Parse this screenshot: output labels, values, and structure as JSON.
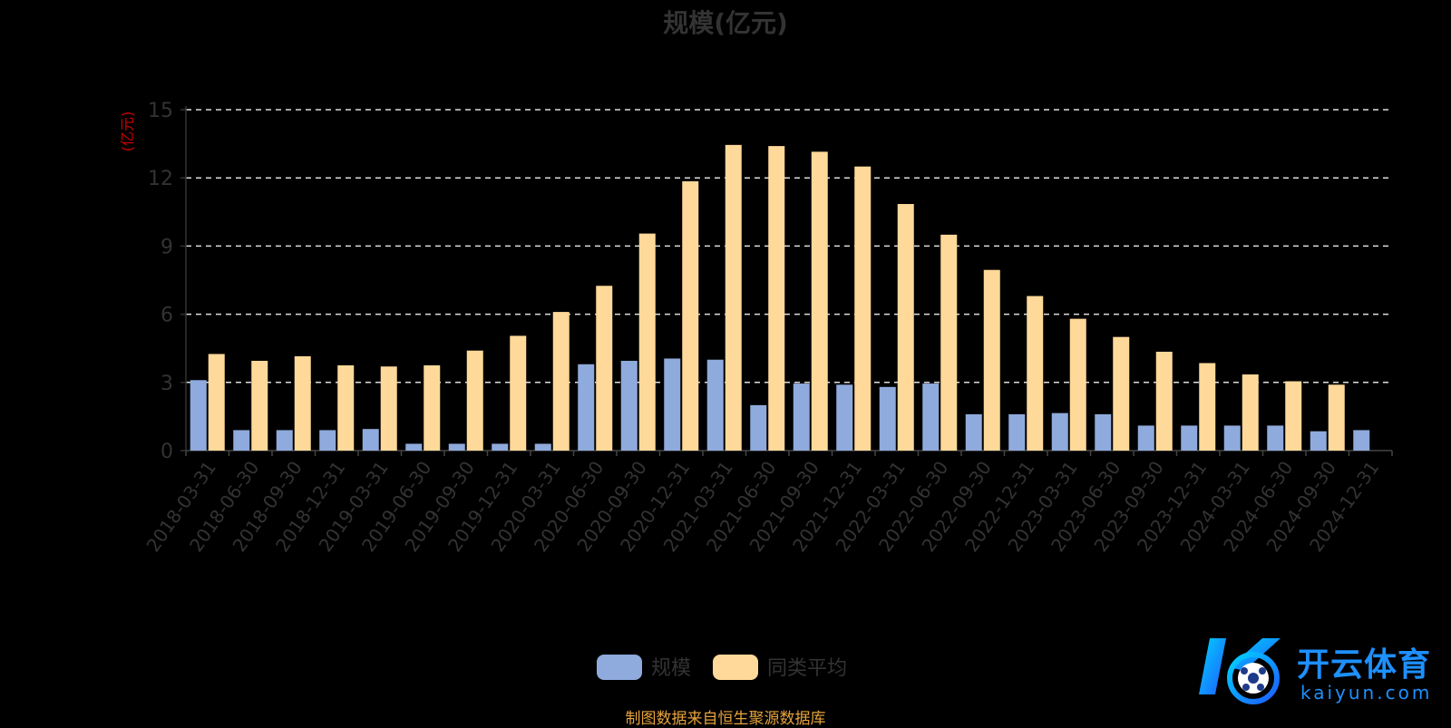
{
  "chart_data": {
    "type": "bar",
    "title": "规模(亿元)",
    "ylabel": "(亿元)",
    "xlabel": "",
    "ylim": [
      0,
      15
    ],
    "yticks": [
      0,
      3,
      6,
      9,
      12,
      15
    ],
    "grid": true,
    "legend_position": "bottom-center",
    "categories": [
      "2018-03-31",
      "2018-06-30",
      "2018-09-30",
      "2018-12-31",
      "2019-03-31",
      "2019-06-30",
      "2019-09-30",
      "2019-12-31",
      "2020-03-31",
      "2020-06-30",
      "2020-09-30",
      "2020-12-31",
      "2021-03-31",
      "2021-06-30",
      "2021-09-30",
      "2021-12-31",
      "2022-03-31",
      "2022-06-30",
      "2022-09-30",
      "2022-12-31",
      "2023-03-31",
      "2023-06-30",
      "2023-09-30",
      "2023-12-31",
      "2024-03-31",
      "2024-06-30",
      "2024-09-30",
      "2024-12-31"
    ],
    "series": [
      {
        "name": "规模",
        "color": "#8FAADC",
        "values": [
          3.1,
          0.9,
          0.9,
          0.9,
          0.95,
          0.3,
          0.3,
          0.3,
          0.3,
          3.8,
          3.95,
          4.05,
          4.0,
          2.0,
          2.95,
          2.9,
          2.8,
          2.95,
          1.6,
          1.6,
          1.65,
          1.6,
          1.1,
          1.1,
          1.1,
          1.1,
          0.85,
          0.9
        ]
      },
      {
        "name": "同类平均",
        "color": "#FFD999",
        "values": [
          4.25,
          3.95,
          4.15,
          3.75,
          3.7,
          3.75,
          4.4,
          5.05,
          6.1,
          7.25,
          9.55,
          11.85,
          13.45,
          13.4,
          13.15,
          12.5,
          10.85,
          9.5,
          7.95,
          6.8,
          5.8,
          5.0,
          4.35,
          3.85,
          3.35,
          3.05,
          2.9,
          null
        ]
      }
    ]
  },
  "source_note": "制图数据来自恒生聚源数据库",
  "watermark": {
    "brand": "开云体育",
    "domain": "kaiyun.com",
    "color": "#1E90FF"
  }
}
